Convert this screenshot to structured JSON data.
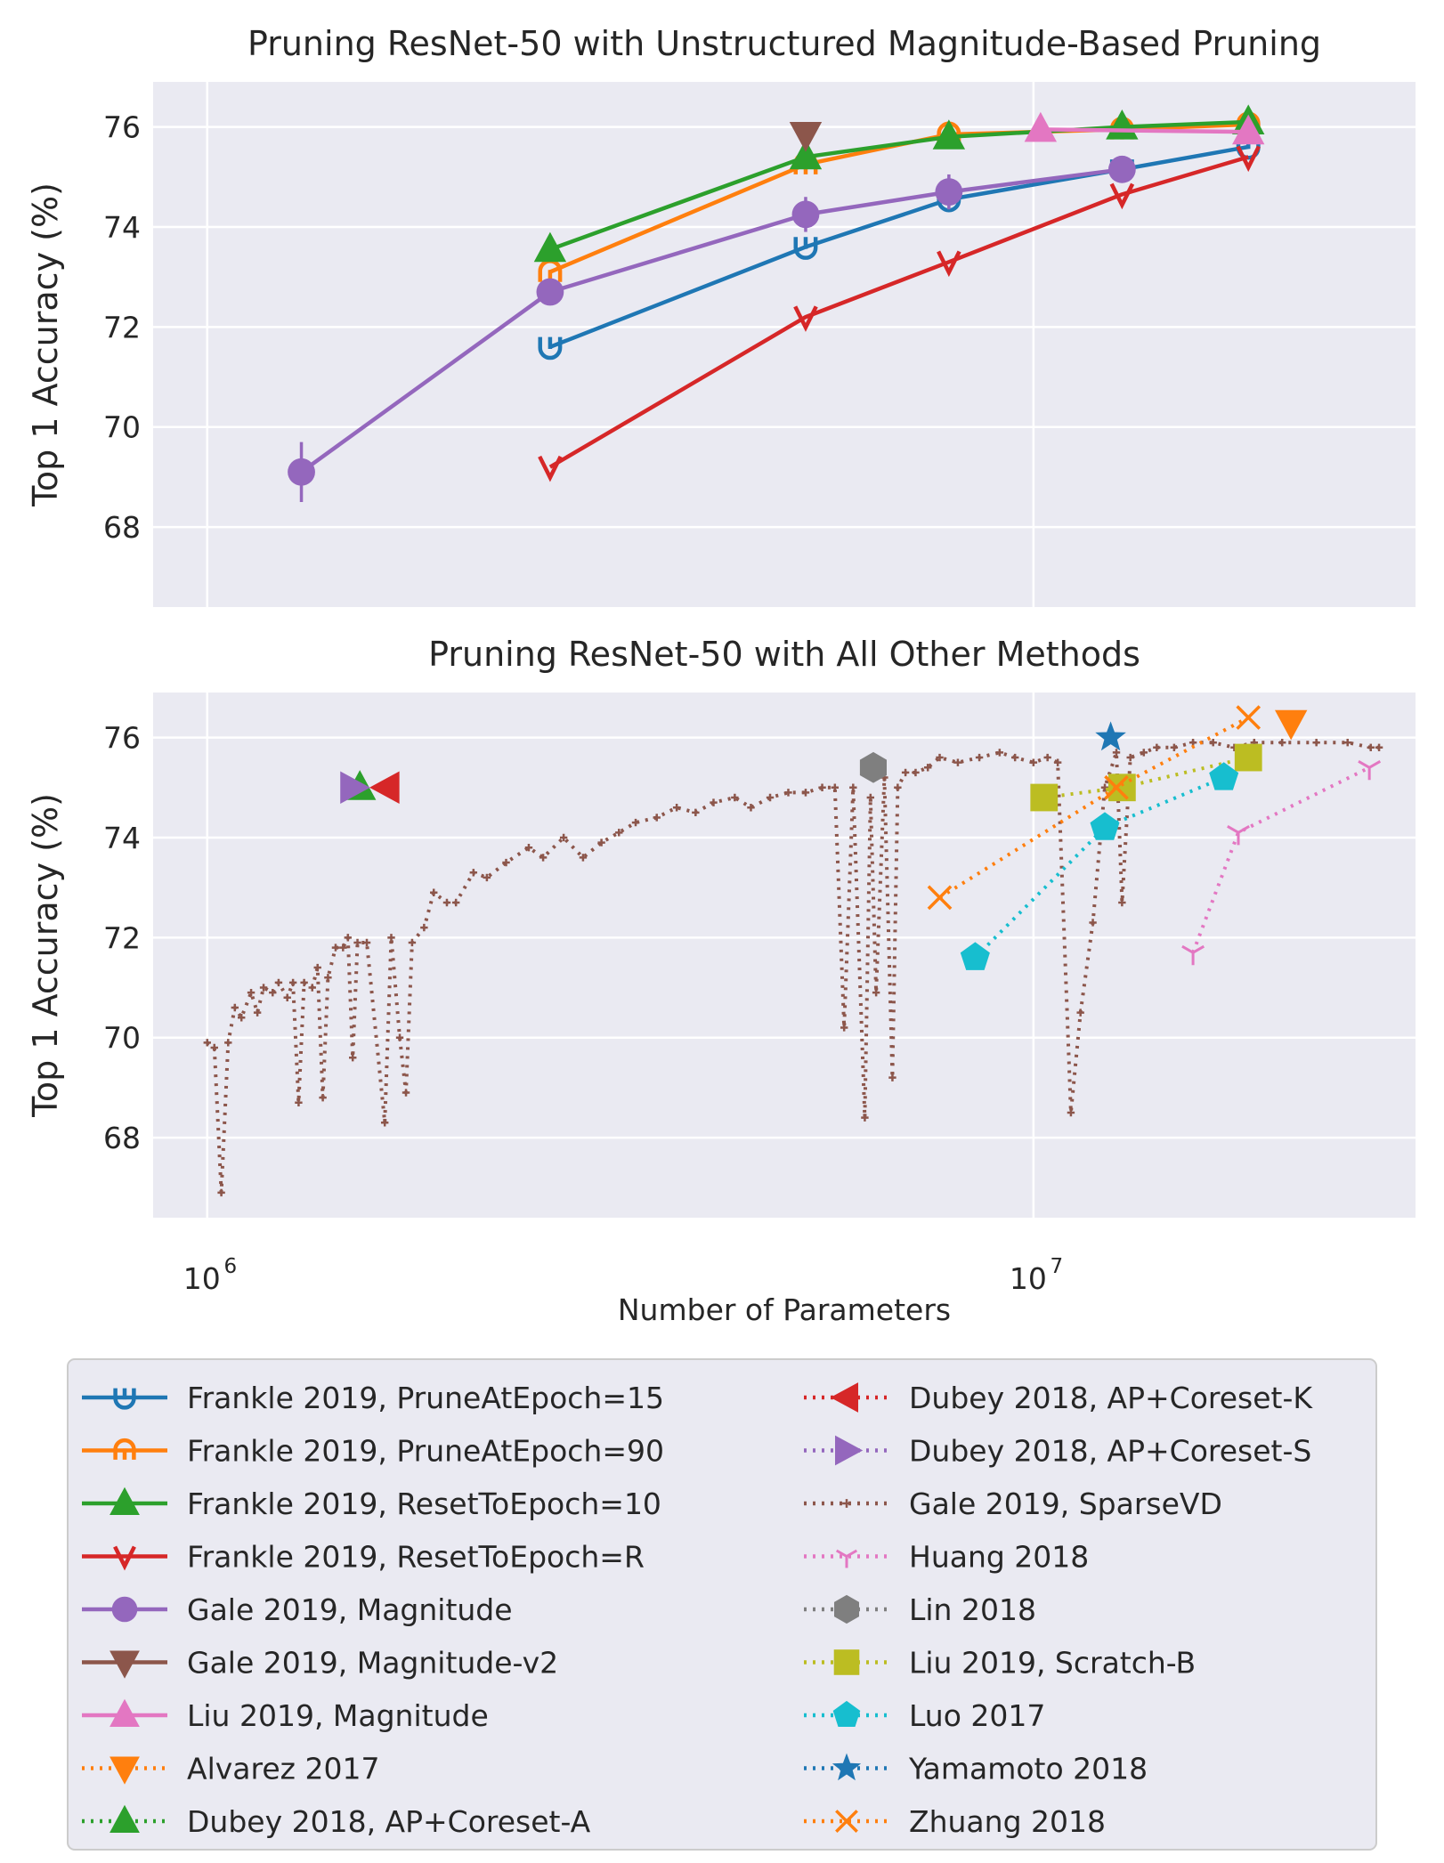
{
  "chart_data": [
    {
      "type": "line",
      "title": "Pruning ResNet-50 with Unstructured Magnitude-Based Pruning",
      "xlabel": "",
      "ylabel": "Top 1 Accuracy (%)",
      "xscale": "log",
      "xlim": [
        860000,
        29000000
      ],
      "ylim": [
        66.4,
        76.9
      ],
      "yticks": [
        "68",
        "70",
        "72",
        "74",
        "76"
      ],
      "grid": true,
      "series": [
        {
          "name": "Frankle 2019, PruneAtEpoch=15",
          "color": "#1f77b4",
          "marker": "u",
          "dash": "solid",
          "points": [
            [
              2600000,
              71.6
            ],
            [
              5300000,
              73.6
            ],
            [
              7900000,
              74.55
            ],
            [
              12800000,
              75.15
            ],
            [
              18200000,
              75.6
            ]
          ]
        },
        {
          "name": "Frankle 2019, PruneAtEpoch=90",
          "color": "#ff7f0e",
          "marker": "n",
          "dash": "solid",
          "points": [
            [
              2600000,
              73.1
            ],
            [
              5300000,
              75.25
            ],
            [
              7900000,
              75.85
            ],
            [
              12800000,
              75.95
            ],
            [
              18200000,
              76.05
            ]
          ]
        },
        {
          "name": "Frankle 2019, ResetToEpoch=10",
          "color": "#2ca02c",
          "marker": "tri-up",
          "dash": "solid",
          "points": [
            [
              2600000,
              73.55
            ],
            [
              5300000,
              75.4
            ],
            [
              7900000,
              75.8
            ],
            [
              12800000,
              76.0
            ],
            [
              18200000,
              76.1
            ]
          ]
        },
        {
          "name": "Frankle 2019, ResetToEpoch=R",
          "color": "#d62728",
          "marker": "v",
          "dash": "solid",
          "points": [
            [
              2600000,
              69.2
            ],
            [
              5300000,
              72.2
            ],
            [
              7900000,
              73.3
            ],
            [
              12800000,
              74.65
            ],
            [
              18200000,
              75.4
            ]
          ]
        },
        {
          "name": "Gale 2019, Magnitude",
          "color": "#9467bd",
          "marker": "circle",
          "dash": "solid",
          "points": [
            [
              1300000,
              69.1
            ],
            [
              2600000,
              72.7
            ],
            [
              5300000,
              74.25
            ],
            [
              7900000,
              74.7
            ],
            [
              12800000,
              75.15
            ]
          ],
          "yerr": [
            0.6,
            0.15,
            0.35,
            0.35,
            0.2
          ]
        },
        {
          "name": "Gale 2019, Magnitude-v2",
          "color": "#8c564b",
          "marker": "tri-down",
          "dash": "solid",
          "points": [
            [
              5300000,
              75.85
            ]
          ]
        },
        {
          "name": "Liu 2019, Magnitude",
          "color": "#e377c2",
          "marker": "tri-up",
          "dash": "solid",
          "points": [
            [
              10200000,
              75.95
            ],
            [
              18200000,
              75.9
            ]
          ]
        }
      ]
    },
    {
      "type": "line",
      "title": "Pruning ResNet-50 with All Other Methods",
      "xlabel": "Number of Parameters",
      "ylabel": "Top 1 Accuracy (%)",
      "xscale": "log",
      "xlim": [
        860000,
        29000000
      ],
      "ylim": [
        66.4,
        76.9
      ],
      "yticks": [
        "68",
        "70",
        "72",
        "74",
        "76"
      ],
      "xticks": [
        {
          "base": "10",
          "exp": "6",
          "value": 1000000
        },
        {
          "base": "10",
          "exp": "7",
          "value": 10000000
        }
      ],
      "grid": true,
      "series": [
        {
          "name": "Alvarez 2017",
          "color": "#ff7f0e",
          "marker": "tri-down",
          "dash": "dotted",
          "points": [
            [
              20500000,
              76.3
            ]
          ]
        },
        {
          "name": "Dubey 2018, AP+Coreset-A",
          "color": "#2ca02c",
          "marker": "tri-up",
          "dash": "dotted",
          "points": [
            [
              1530000,
              75.0
            ]
          ]
        },
        {
          "name": "Dubey 2018, AP+Coreset-K",
          "color": "#d62728",
          "marker": "tri-left",
          "dash": "dotted",
          "points": [
            [
              1650000,
              75.0
            ]
          ]
        },
        {
          "name": "Dubey 2018, AP+Coreset-S",
          "color": "#9467bd",
          "marker": "tri-right",
          "dash": "dotted",
          "points": [
            [
              1500000,
              75.0
            ]
          ]
        },
        {
          "name": "Gale 2019, SparseVD",
          "color": "#8c564b",
          "marker": "tick",
          "dash": "dotted",
          "points": [
            [
              1000000,
              69.9
            ],
            [
              1020000,
              69.8
            ],
            [
              1040000,
              66.9
            ],
            [
              1060000,
              69.9
            ],
            [
              1080000,
              70.6
            ],
            [
              1100000,
              70.4
            ],
            [
              1130000,
              70.9
            ],
            [
              1150000,
              70.5
            ],
            [
              1170000,
              71.0
            ],
            [
              1200000,
              70.9
            ],
            [
              1220000,
              71.1
            ],
            [
              1250000,
              70.8
            ],
            [
              1270000,
              71.1
            ],
            [
              1290000,
              68.7
            ],
            [
              1310000,
              71.1
            ],
            [
              1340000,
              71.0
            ],
            [
              1360000,
              71.4
            ],
            [
              1380000,
              68.8
            ],
            [
              1400000,
              71.2
            ],
            [
              1430000,
              71.8
            ],
            [
              1460000,
              71.8
            ],
            [
              1480000,
              72.0
            ],
            [
              1500000,
              69.6
            ],
            [
              1520000,
              71.9
            ],
            [
              1560000,
              71.9
            ],
            [
              1640000,
              68.3
            ],
            [
              1670000,
              72.0
            ],
            [
              1710000,
              70.0
            ],
            [
              1740000,
              68.9
            ],
            [
              1770000,
              71.9
            ],
            [
              1830000,
              72.2
            ],
            [
              1880000,
              72.9
            ],
            [
              1950000,
              72.7
            ],
            [
              2000000,
              72.7
            ],
            [
              2100000,
              73.3
            ],
            [
              2180000,
              73.2
            ],
            [
              2300000,
              73.5
            ],
            [
              2450000,
              73.8
            ],
            [
              2550000,
              73.6
            ],
            [
              2700000,
              74.0
            ],
            [
              2850000,
              73.6
            ],
            [
              3000000,
              73.9
            ],
            [
              3150000,
              74.1
            ],
            [
              3300000,
              74.3
            ],
            [
              3500000,
              74.4
            ],
            [
              3700000,
              74.6
            ],
            [
              3900000,
              74.5
            ],
            [
              4100000,
              74.7
            ],
            [
              4350000,
              74.8
            ],
            [
              4550000,
              74.6
            ],
            [
              4800000,
              74.8
            ],
            [
              5050000,
              74.9
            ],
            [
              5300000,
              74.9
            ],
            [
              5550000,
              75.0
            ],
            [
              5750000,
              75.0
            ],
            [
              5900000,
              70.2
            ],
            [
              6050000,
              75.0
            ],
            [
              6250000,
              68.4
            ],
            [
              6350000,
              74.8
            ],
            [
              6450000,
              70.9
            ],
            [
              6600000,
              75.2
            ],
            [
              6750000,
              69.2
            ],
            [
              6850000,
              75.0
            ],
            [
              7000000,
              75.3
            ],
            [
              7200000,
              75.3
            ],
            [
              7450000,
              75.4
            ],
            [
              7700000,
              75.6
            ],
            [
              8100000,
              75.5
            ],
            [
              8600000,
              75.6
            ],
            [
              9100000,
              75.7
            ],
            [
              9500000,
              75.6
            ],
            [
              10000000,
              75.5
            ],
            [
              10400000,
              75.6
            ],
            [
              10700000,
              75.5
            ],
            [
              11100000,
              68.5
            ],
            [
              11400000,
              70.5
            ],
            [
              11800000,
              72.3
            ],
            [
              12200000,
              75.0
            ],
            [
              12600000,
              75.7
            ],
            [
              12800000,
              72.7
            ],
            [
              13100000,
              75.6
            ],
            [
              13600000,
              75.7
            ],
            [
              14100000,
              75.8
            ],
            [
              14800000,
              75.8
            ],
            [
              15600000,
              75.9
            ],
            [
              16500000,
              75.9
            ],
            [
              17500000,
              75.8
            ],
            [
              18500000,
              75.9
            ],
            [
              20000000,
              75.9
            ],
            [
              22000000,
              75.9
            ],
            [
              24000000,
              75.9
            ],
            [
              25600000,
              75.8
            ],
            [
              26200000,
              75.8
            ]
          ]
        },
        {
          "name": "Huang 2018",
          "color": "#e377c2",
          "marker": "tri-tick",
          "dash": "dotted",
          "points": [
            [
              15600000,
              71.7
            ],
            [
              17700000,
              74.1
            ],
            [
              25500000,
              75.4
            ]
          ]
        },
        {
          "name": "Lin 2018",
          "color": "#7f7f7f",
          "marker": "hexagon",
          "dash": "dotted",
          "points": [
            [
              6400000,
              75.4
            ]
          ]
        },
        {
          "name": "Liu 2019, Scratch-B",
          "color": "#bcbd22",
          "marker": "square",
          "dash": "dotted",
          "points": [
            [
              10300000,
              74.8
            ],
            [
              12800000,
              75.0
            ],
            [
              18200000,
              75.6
            ]
          ]
        },
        {
          "name": "Luo 2017",
          "color": "#17becf",
          "marker": "pentagon",
          "dash": "dotted",
          "points": [
            [
              8500000,
              71.6
            ],
            [
              12200000,
              74.2
            ],
            [
              17000000,
              75.2
            ]
          ]
        },
        {
          "name": "Yamamoto 2018",
          "color": "#1f77b4",
          "marker": "star",
          "dash": "dotted",
          "points": [
            [
              12400000,
              76.0
            ]
          ]
        },
        {
          "name": "Zhuang 2018",
          "color": "#ff7f0e",
          "marker": "x",
          "dash": "dotted",
          "points": [
            [
              7700000,
              72.8
            ],
            [
              12600000,
              75.0
            ],
            [
              18200000,
              76.4
            ]
          ]
        }
      ]
    }
  ],
  "legend": {
    "placement": "bottom",
    "entries": [
      "Frankle 2019, PruneAtEpoch=15",
      "Frankle 2019, PruneAtEpoch=90",
      "Frankle 2019, ResetToEpoch=10",
      "Frankle 2019, ResetToEpoch=R",
      "Gale 2019, Magnitude",
      "Gale 2019, Magnitude-v2",
      "Liu 2019, Magnitude",
      "Alvarez 2017",
      "Dubey 2018, AP+Coreset-A",
      "Dubey 2018, AP+Coreset-K",
      "Dubey 2018, AP+Coreset-S",
      "Gale 2019, SparseVD",
      "Huang 2018",
      "Lin 2018",
      "Liu 2019, Scratch-B",
      "Luo 2017",
      "Yamamoto 2018",
      "Zhuang 2018"
    ]
  },
  "colors": {
    "panel_bg": "#eaeaf2",
    "grid": "#ffffff",
    "text": "#262626"
  }
}
